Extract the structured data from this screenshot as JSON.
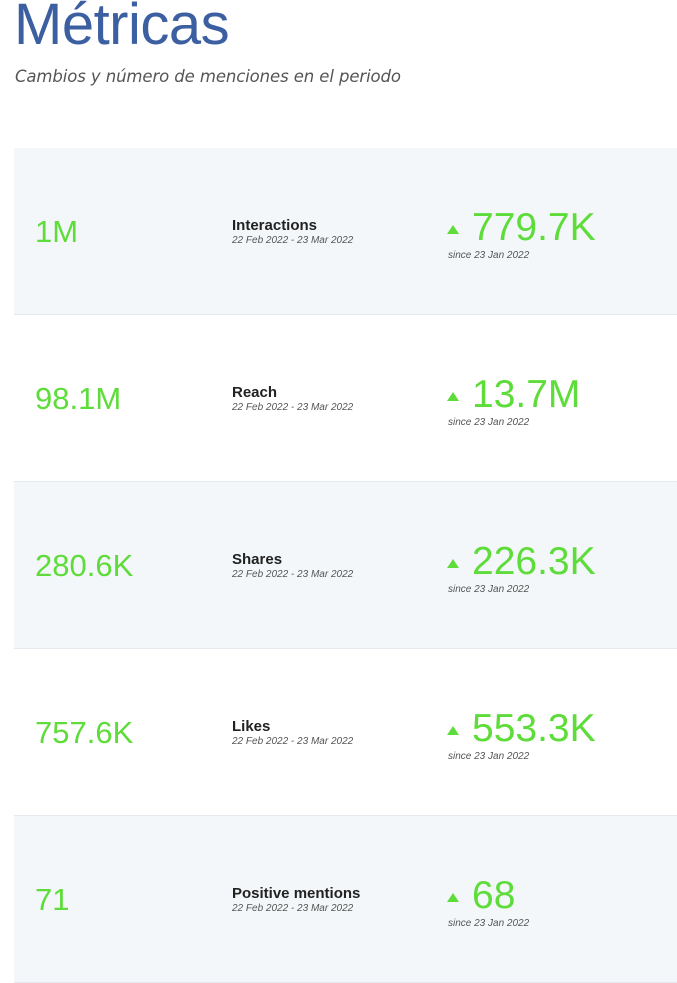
{
  "header": {
    "title": "Métricas",
    "subtitle": "Cambios y número de menciones en el periodo"
  },
  "colors": {
    "title": "#3b5fa0",
    "positive": "#5ddc3a",
    "row_alt_bg": "#f4f7f9"
  },
  "metrics": [
    {
      "value": "1M",
      "label": "Interactions",
      "period": "22 Feb 2022 - 23 Mar 2022",
      "change": "779.7K",
      "since": "since 23 Jan 2022",
      "trend_icon": "triangle-up-icon"
    },
    {
      "value": "98.1M",
      "label": "Reach",
      "period": "22 Feb 2022 - 23 Mar 2022",
      "change": "13.7M",
      "since": "since 23 Jan 2022",
      "trend_icon": "triangle-up-icon"
    },
    {
      "value": "280.6K",
      "label": "Shares",
      "period": "22 Feb 2022 - 23 Mar 2022",
      "change": "226.3K",
      "since": "since 23 Jan 2022",
      "trend_icon": "triangle-up-icon"
    },
    {
      "value": "757.6K",
      "label": "Likes",
      "period": "22 Feb 2022 - 23 Mar 2022",
      "change": "553.3K",
      "since": "since 23 Jan 2022",
      "trend_icon": "triangle-up-icon"
    },
    {
      "value": "71",
      "label": "Positive mentions",
      "period": "22 Feb 2022 - 23 Mar 2022",
      "change": "68",
      "since": "since 23 Jan 2022",
      "trend_icon": "triangle-up-icon"
    }
  ]
}
